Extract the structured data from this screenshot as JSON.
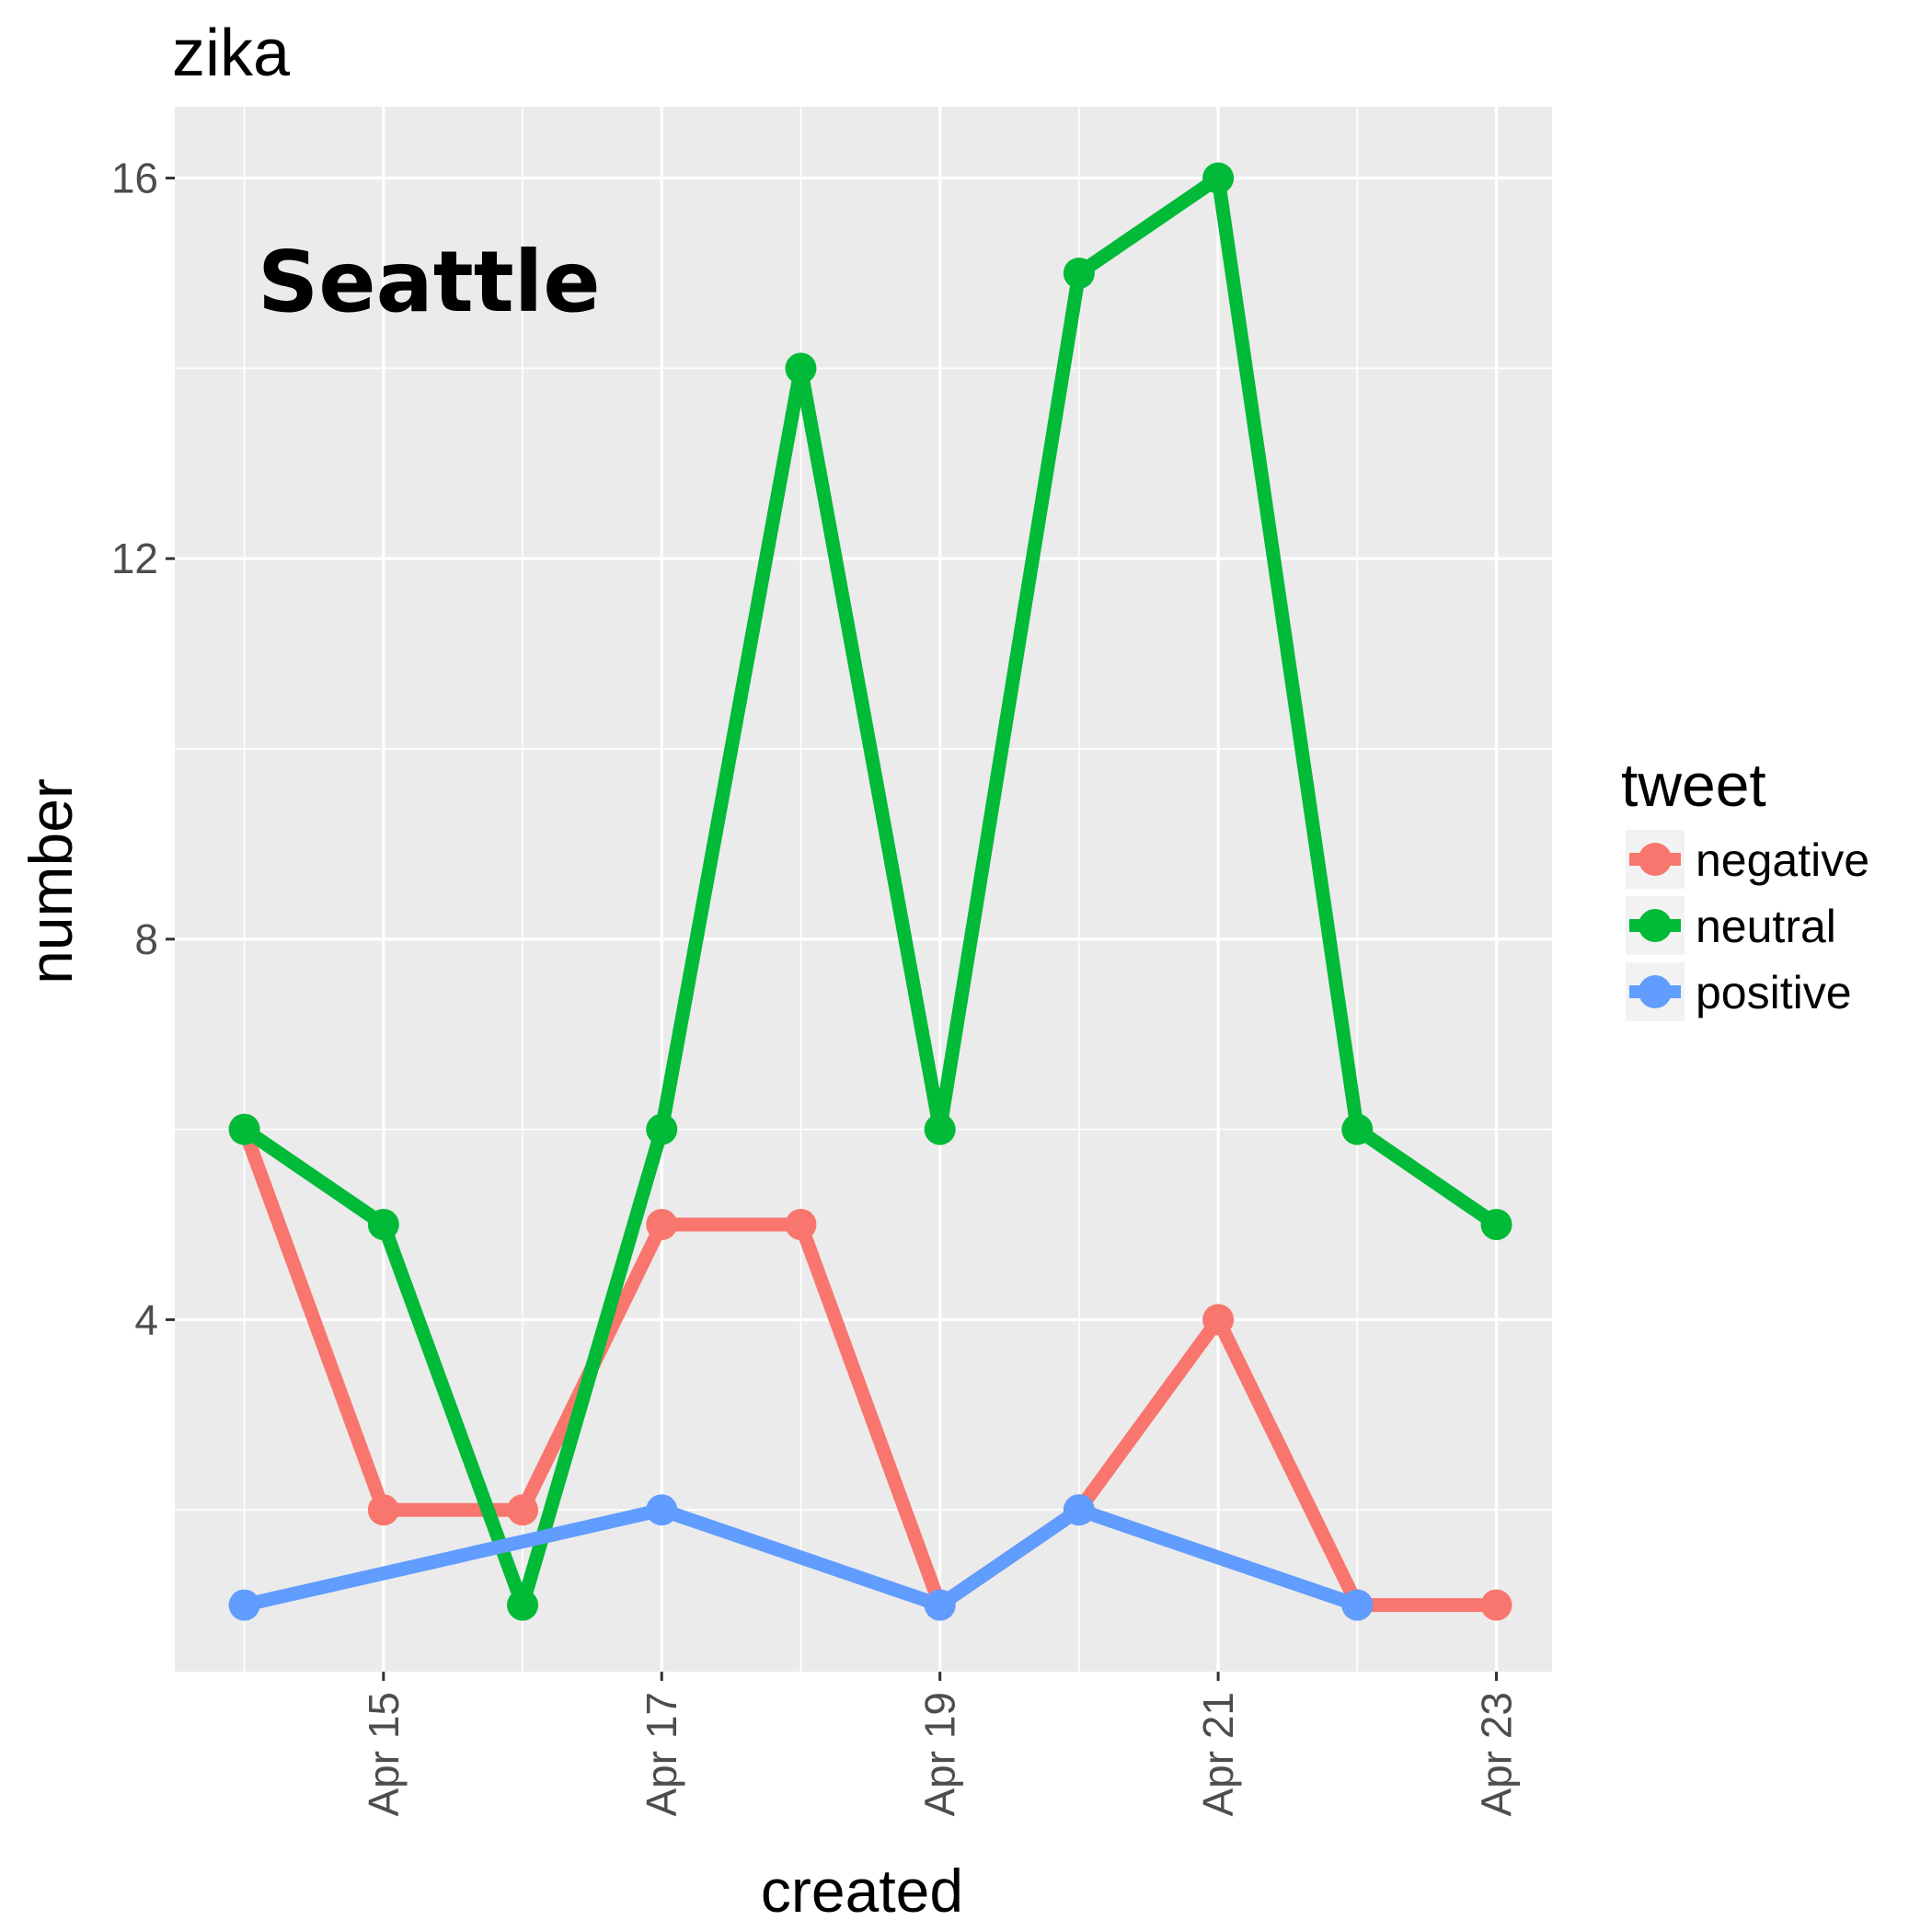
{
  "chart_data": {
    "type": "line",
    "title": "zika",
    "xlabel": "created",
    "ylabel": "number",
    "annotation": "Seattle",
    "x": [
      "Apr 14",
      "Apr 15",
      "Apr 16",
      "Apr 17",
      "Apr 18",
      "Apr 19",
      "Apr 20",
      "Apr 21",
      "Apr 22",
      "Apr 23"
    ],
    "x_tick_labels": [
      "Apr 15",
      "Apr 17",
      "Apr 19",
      "Apr 21",
      "Apr 23"
    ],
    "y_ticks": [
      4,
      8,
      12,
      16
    ],
    "xlim": [
      "Apr 13.5",
      "Apr 23.4"
    ],
    "ylim": [
      0.3,
      16.75
    ],
    "grid": true,
    "legend": {
      "title": "tweet",
      "placement": "right"
    },
    "series": [
      {
        "name": "negative",
        "color": "#F8766D",
        "points": [
          {
            "x": "Apr 14",
            "y": 6
          },
          {
            "x": "Apr 15",
            "y": 2
          },
          {
            "x": "Apr 16",
            "y": 2
          },
          {
            "x": "Apr 17",
            "y": 5
          },
          {
            "x": "Apr 18",
            "y": 5
          },
          {
            "x": "Apr 19",
            "y": 1
          },
          {
            "x": "Apr 20",
            "y": 2
          },
          {
            "x": "Apr 21",
            "y": 4
          },
          {
            "x": "Apr 22",
            "y": 1
          },
          {
            "x": "Apr 23",
            "y": 1
          }
        ]
      },
      {
        "name": "neutral",
        "color": "#00BA38",
        "points": [
          {
            "x": "Apr 14",
            "y": 6
          },
          {
            "x": "Apr 15",
            "y": 5
          },
          {
            "x": "Apr 16",
            "y": 1
          },
          {
            "x": "Apr 17",
            "y": 6
          },
          {
            "x": "Apr 18",
            "y": 14
          },
          {
            "x": "Apr 19",
            "y": 6
          },
          {
            "x": "Apr 20",
            "y": 15
          },
          {
            "x": "Apr 21",
            "y": 16
          },
          {
            "x": "Apr 22",
            "y": 6
          },
          {
            "x": "Apr 23",
            "y": 5
          }
        ]
      },
      {
        "name": "positive",
        "color": "#619CFF",
        "points": [
          {
            "x": "Apr 14",
            "y": 1
          },
          {
            "x": "Apr 17",
            "y": 2
          },
          {
            "x": "Apr 19",
            "y": 1
          },
          {
            "x": "Apr 20",
            "y": 2
          },
          {
            "x": "Apr 22",
            "y": 1
          }
        ]
      }
    ]
  }
}
